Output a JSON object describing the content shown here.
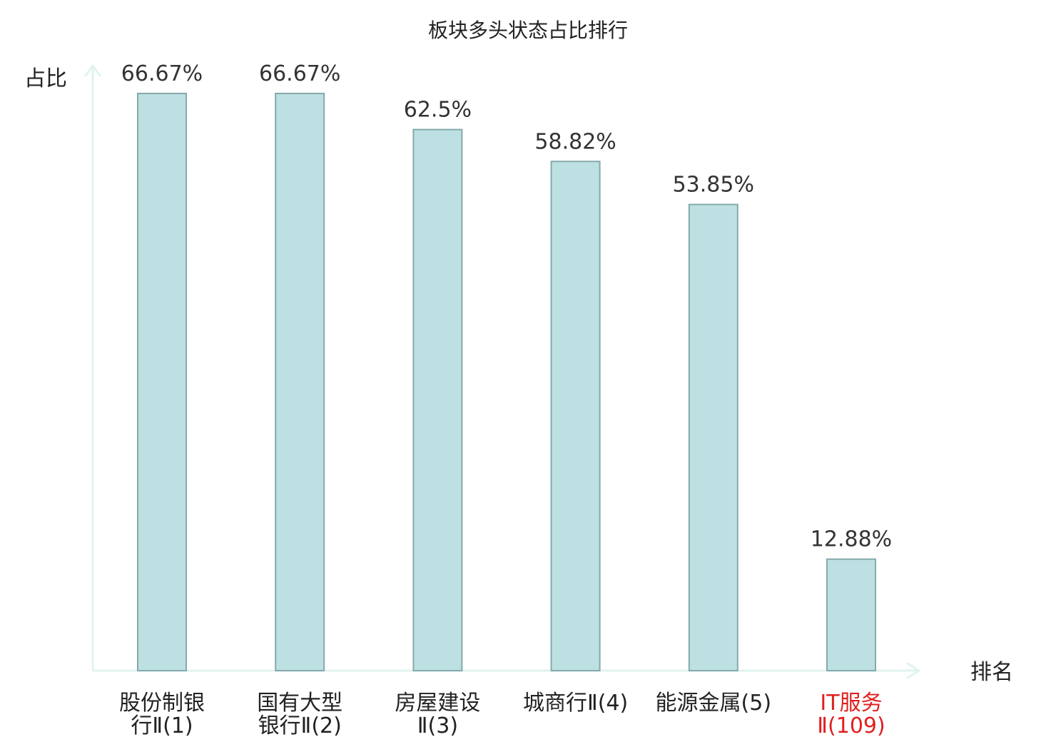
{
  "chart_data": {
    "type": "bar",
    "title": "板块多头状态占比排行",
    "ylabel": "占比",
    "xlabel": "排名",
    "ylim": [
      0,
      70
    ],
    "grid": false,
    "categories": [
      {
        "lines": [
          "股份制银",
          "行Ⅱ(1)"
        ],
        "highlight": false
      },
      {
        "lines": [
          "国有大型",
          "银行Ⅱ(2)"
        ],
        "highlight": false
      },
      {
        "lines": [
          "房屋建设",
          "Ⅱ(3)"
        ],
        "highlight": false
      },
      {
        "lines": [
          "城商行Ⅱ(4)"
        ],
        "highlight": false
      },
      {
        "lines": [
          "能源金属(5)"
        ],
        "highlight": false
      },
      {
        "lines": [
          "IT服务",
          "Ⅱ(109)"
        ],
        "highlight": true
      }
    ],
    "values": [
      66.67,
      66.67,
      62.5,
      58.82,
      53.85,
      12.88
    ],
    "value_labels": [
      "66.67%",
      "66.67%",
      "62.5%",
      "58.82%",
      "53.85%",
      "12.88%"
    ],
    "colors": {
      "bar_fill": "#bde1e3",
      "bar_stroke": "#86a9ab",
      "axis": "#e1f3f1",
      "text": "#222222",
      "highlight_text": "#e02020"
    }
  }
}
